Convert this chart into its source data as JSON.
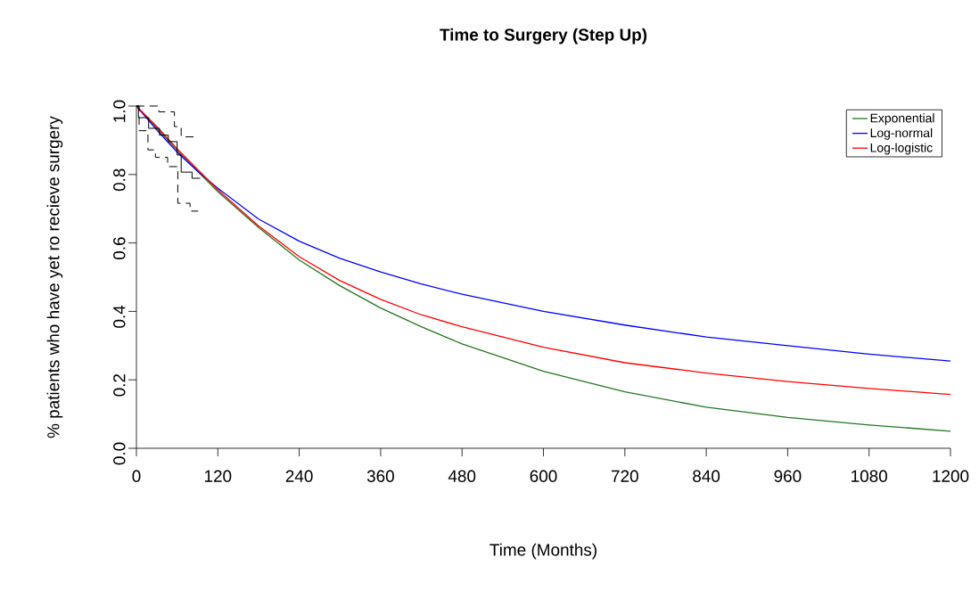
{
  "chart_data": {
    "type": "line",
    "title": "Time to Surgery (Step Up)",
    "xlabel": "Time (Months)",
    "ylabel": "% patients who have yet ro recieve surgery",
    "xlim": [
      0,
      1200
    ],
    "ylim": [
      0,
      1
    ],
    "xticks": [
      0,
      120,
      240,
      360,
      480,
      600,
      720,
      840,
      960,
      1080,
      1200
    ],
    "yticks": [
      {
        "value": 0,
        "label": "0.0"
      },
      0.2,
      0.4,
      0.6,
      0.8,
      {
        "value": 1,
        "label": "1.0"
      }
    ],
    "grid": false,
    "legend": "top right",
    "marker": "none",
    "series": [
      {
        "name": "Exponential",
        "color": "#217821",
        "x": [
          0,
          30,
          60,
          90,
          120,
          180,
          240,
          300,
          360,
          420,
          480,
          600,
          720,
          840,
          960,
          1080,
          1200
        ],
        "values": [
          1.0,
          0.935,
          0.87,
          0.81,
          0.75,
          0.645,
          0.55,
          0.475,
          0.41,
          0.355,
          0.305,
          0.225,
          0.165,
          0.12,
          0.09,
          0.068,
          0.05
        ]
      },
      {
        "name": "Log-normal",
        "color": "#0000ff",
        "x": [
          0,
          30,
          60,
          90,
          120,
          180,
          240,
          300,
          360,
          420,
          480,
          600,
          720,
          840,
          960,
          1080,
          1200
        ],
        "values": [
          1.0,
          0.93,
          0.865,
          0.81,
          0.76,
          0.67,
          0.605,
          0.555,
          0.515,
          0.48,
          0.45,
          0.4,
          0.36,
          0.325,
          0.3,
          0.275,
          0.255
        ]
      },
      {
        "name": "Log-logistic",
        "color": "#ff0000",
        "x": [
          0,
          30,
          60,
          90,
          120,
          180,
          240,
          300,
          360,
          420,
          480,
          600,
          720,
          840,
          960,
          1080,
          1200
        ],
        "values": [
          1.0,
          0.94,
          0.875,
          0.815,
          0.755,
          0.65,
          0.56,
          0.49,
          0.435,
          0.39,
          0.355,
          0.295,
          0.25,
          0.22,
          0.195,
          0.175,
          0.157
        ]
      },
      {
        "type": "step",
        "color": "#000000",
        "line_style": "solid",
        "x": [
          0,
          3,
          18,
          34,
          47,
          60,
          66,
          82,
          94
        ],
        "values": [
          1.0,
          0.966,
          0.935,
          0.915,
          0.896,
          0.857,
          0.807,
          0.789,
          0.789
        ]
      },
      {
        "type": "step",
        "color": "#000000",
        "line_style": "dashed",
        "x": [
          0,
          33,
          56,
          66,
          88
        ],
        "values": [
          1.0,
          0.983,
          0.94,
          0.91,
          0.91
        ]
      },
      {
        "type": "step",
        "color": "#000000",
        "line_style": "dashed",
        "x": [
          0,
          4,
          17,
          28,
          46,
          61,
          71,
          79,
          91
        ],
        "values": [
          1.0,
          0.928,
          0.872,
          0.85,
          0.823,
          0.716,
          0.716,
          0.693,
          0.693
        ]
      }
    ]
  }
}
